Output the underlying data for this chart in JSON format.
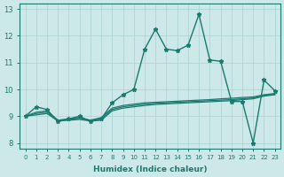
{
  "xlabel": "Humidex (Indice chaleur)",
  "background_color": "#cce8e8",
  "grid_color": "#b0d4d4",
  "line_color": "#1a7a6e",
  "xlim": [
    -0.5,
    23.5
  ],
  "ylim": [
    7.8,
    13.2
  ],
  "yticks": [
    8,
    9,
    10,
    11,
    12,
    13
  ],
  "xticks": [
    0,
    1,
    2,
    3,
    4,
    5,
    6,
    7,
    8,
    9,
    10,
    11,
    12,
    13,
    14,
    15,
    16,
    17,
    18,
    19,
    20,
    21,
    22,
    23
  ],
  "series": [
    {
      "x": [
        0,
        1,
        2,
        3,
        4,
        5,
        6,
        7,
        8,
        9,
        10,
        11,
        12,
        13,
        14,
        15,
        16,
        17,
        18,
        19,
        20,
        21,
        22,
        23
      ],
      "y": [
        9.0,
        9.35,
        9.25,
        8.8,
        8.9,
        9.0,
        8.8,
        8.9,
        9.5,
        9.8,
        10.0,
        11.5,
        12.25,
        11.5,
        11.45,
        11.65,
        12.8,
        11.1,
        11.05,
        9.55,
        9.55,
        8.0,
        10.35,
        9.95
      ],
      "marker": true,
      "lw": 1.0
    },
    {
      "x": [
        0,
        1,
        2,
        3,
        4,
        5,
        6,
        7,
        8,
        9,
        10,
        11,
        12,
        13,
        14,
        15,
        16,
        17,
        18,
        19,
        20,
        21,
        22,
        23
      ],
      "y": [
        9.0,
        9.15,
        9.2,
        8.85,
        8.9,
        8.95,
        8.85,
        8.95,
        9.3,
        9.4,
        9.45,
        9.5,
        9.52,
        9.54,
        9.56,
        9.58,
        9.6,
        9.62,
        9.65,
        9.67,
        9.7,
        9.72,
        9.8,
        9.85
      ],
      "marker": false,
      "lw": 0.9
    },
    {
      "x": [
        0,
        1,
        2,
        3,
        4,
        5,
        6,
        7,
        8,
        9,
        10,
        11,
        12,
        13,
        14,
        15,
        16,
        17,
        18,
        19,
        20,
        21,
        22,
        23
      ],
      "y": [
        9.0,
        9.1,
        9.15,
        8.85,
        8.88,
        8.92,
        8.85,
        8.9,
        9.25,
        9.35,
        9.4,
        9.45,
        9.48,
        9.5,
        9.52,
        9.54,
        9.56,
        9.58,
        9.6,
        9.62,
        9.65,
        9.68,
        9.78,
        9.82
      ],
      "marker": false,
      "lw": 0.9
    },
    {
      "x": [
        0,
        1,
        2,
        3,
        4,
        5,
        6,
        7,
        8,
        9,
        10,
        11,
        12,
        13,
        14,
        15,
        16,
        17,
        18,
        19,
        20,
        21,
        22,
        23
      ],
      "y": [
        9.0,
        9.05,
        9.1,
        8.82,
        8.85,
        8.88,
        8.82,
        8.85,
        9.2,
        9.3,
        9.35,
        9.4,
        9.44,
        9.46,
        9.48,
        9.5,
        9.52,
        9.54,
        9.56,
        9.58,
        9.62,
        9.65,
        9.75,
        9.8
      ],
      "marker": false,
      "lw": 0.9
    }
  ]
}
